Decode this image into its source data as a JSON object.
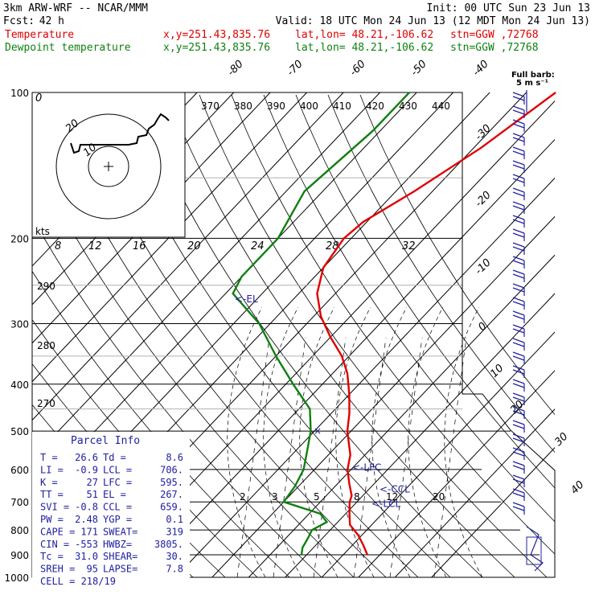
{
  "header": {
    "model": "3km ARW-WRF -- NCAR/MMM",
    "init": "Init: 00 UTC Sun 23 Jun 13",
    "fcst_label": "Fcst:",
    "fcst_value": "42 h",
    "valid": "Valid: 18 UTC Mon 24 Jun 13 (12 MDT Mon 24 Jun 13)",
    "temp_line": {
      "label": "Temperature",
      "xy": "x,y=251.43,835.76",
      "latlon": "lat,lon= 48.21,-106.62",
      "stn": "stn=GGW ,72768"
    },
    "dew_line": {
      "label": "Dewpoint temperature",
      "xy": "x,y=251.43,835.76",
      "latlon": "lat,lon= 48.21,-106.62",
      "stn": "stn=GGW ,72768"
    }
  },
  "barb_legend": {
    "line1": "Full barb:",
    "line2": "5 m s⁻¹"
  },
  "colors": {
    "temperature": "#e00000",
    "dewpoint": "#108010",
    "lines": "#000000",
    "text_blue": "#2020a0"
  },
  "chart_data": {
    "type": "line",
    "y_axis": {
      "name": "pressure",
      "unit": "hPa",
      "scale": "log",
      "range": [
        100,
        1000
      ],
      "ticks": [
        100,
        200,
        300,
        400,
        500,
        600,
        700,
        800,
        900,
        1000
      ]
    },
    "isotherm_labels": [
      -80,
      -70,
      -60,
      -50,
      -40,
      -30,
      -20,
      -10,
      0,
      10,
      20,
      30,
      40
    ],
    "theta_labels": [
      "370",
      "380",
      "390",
      "400",
      "410",
      "420",
      "430",
      "440"
    ],
    "mixing_ratio_labels": [
      "2",
      "3",
      "5",
      "8",
      "12",
      "20"
    ],
    "hodograph_rings": [
      "10",
      "20"
    ],
    "hodograph_kts_label": "kts",
    "hodograph_speed_labels": [
      "8",
      "12",
      "16",
      "20",
      "24",
      "28",
      "32"
    ],
    "left_theta_labels": [
      "290",
      "280",
      "270"
    ],
    "series": [
      {
        "name": "Temperature",
        "color": "#e00000",
        "points": [
          [
            100,
            -42
          ],
          [
            130,
            -48
          ],
          [
            160,
            -55
          ],
          [
            185,
            -61
          ],
          [
            200,
            -62
          ],
          [
            230,
            -60
          ],
          [
            260,
            -55
          ],
          [
            290,
            -48
          ],
          [
            320,
            -40
          ],
          [
            350,
            -32
          ],
          [
            380,
            -26
          ],
          [
            420,
            -20
          ],
          [
            460,
            -15
          ],
          [
            500,
            -11
          ],
          [
            560,
            -4
          ],
          [
            600,
            -1
          ],
          [
            640,
            3
          ],
          [
            680,
            7
          ],
          [
            700,
            8
          ],
          [
            740,
            11
          ],
          [
            780,
            14
          ],
          [
            820,
            19
          ],
          [
            860,
            23
          ],
          [
            900,
            26.6
          ]
        ]
      },
      {
        "name": "Dewpoint temperature",
        "color": "#108010",
        "points": [
          [
            100,
            -82
          ],
          [
            120,
            -82
          ],
          [
            160,
            -85
          ],
          [
            200,
            -80
          ],
          [
            240,
            -80
          ],
          [
            260,
            -78
          ],
          [
            300,
            -63
          ],
          [
            350,
            -50
          ],
          [
            400,
            -38
          ],
          [
            450,
            -27
          ],
          [
            500,
            -21
          ],
          [
            560,
            -16
          ],
          [
            600,
            -13
          ],
          [
            650,
            -11
          ],
          [
            700,
            -10
          ],
          [
            740,
            3
          ],
          [
            770,
            7
          ],
          [
            800,
            5
          ],
          [
            830,
            6
          ],
          [
            870,
            7
          ],
          [
            900,
            8.6
          ]
        ]
      }
    ],
    "levels": [
      {
        "label": "<-EL",
        "p": 267
      },
      {
        "label": "<-LFC",
        "p": 595
      },
      {
        "label": "<-CCL",
        "p": 659
      },
      {
        "label": "<-LCL",
        "p": 706
      }
    ],
    "wind_barbs_present": true
  },
  "parcel_info": {
    "title": "Parcel Info",
    "rows": [
      [
        "T  =",
        "26.6",
        "Td =",
        "8.6"
      ],
      [
        "LI =",
        "-0.9",
        "LCL =",
        "706."
      ],
      [
        "K  =",
        "27",
        "LFC =",
        "595."
      ],
      [
        "TT =",
        "51",
        "EL  =",
        "267."
      ],
      [
        "SVI =",
        "-0.8",
        "CCL =",
        "659."
      ],
      [
        "PW =",
        "2.48",
        "YGP =",
        "0.1"
      ],
      [
        "CAPE =",
        "171",
        "SWEAT=",
        "319"
      ],
      [
        "CIN =",
        "-553",
        "HWBZ=",
        "3805."
      ],
      [
        "Tc =",
        "31.0",
        "SHEAR=",
        "30."
      ],
      [
        "SREH =",
        "95",
        "LAPSE=",
        "7.8"
      ]
    ],
    "cell": "CELL = 218/19"
  }
}
